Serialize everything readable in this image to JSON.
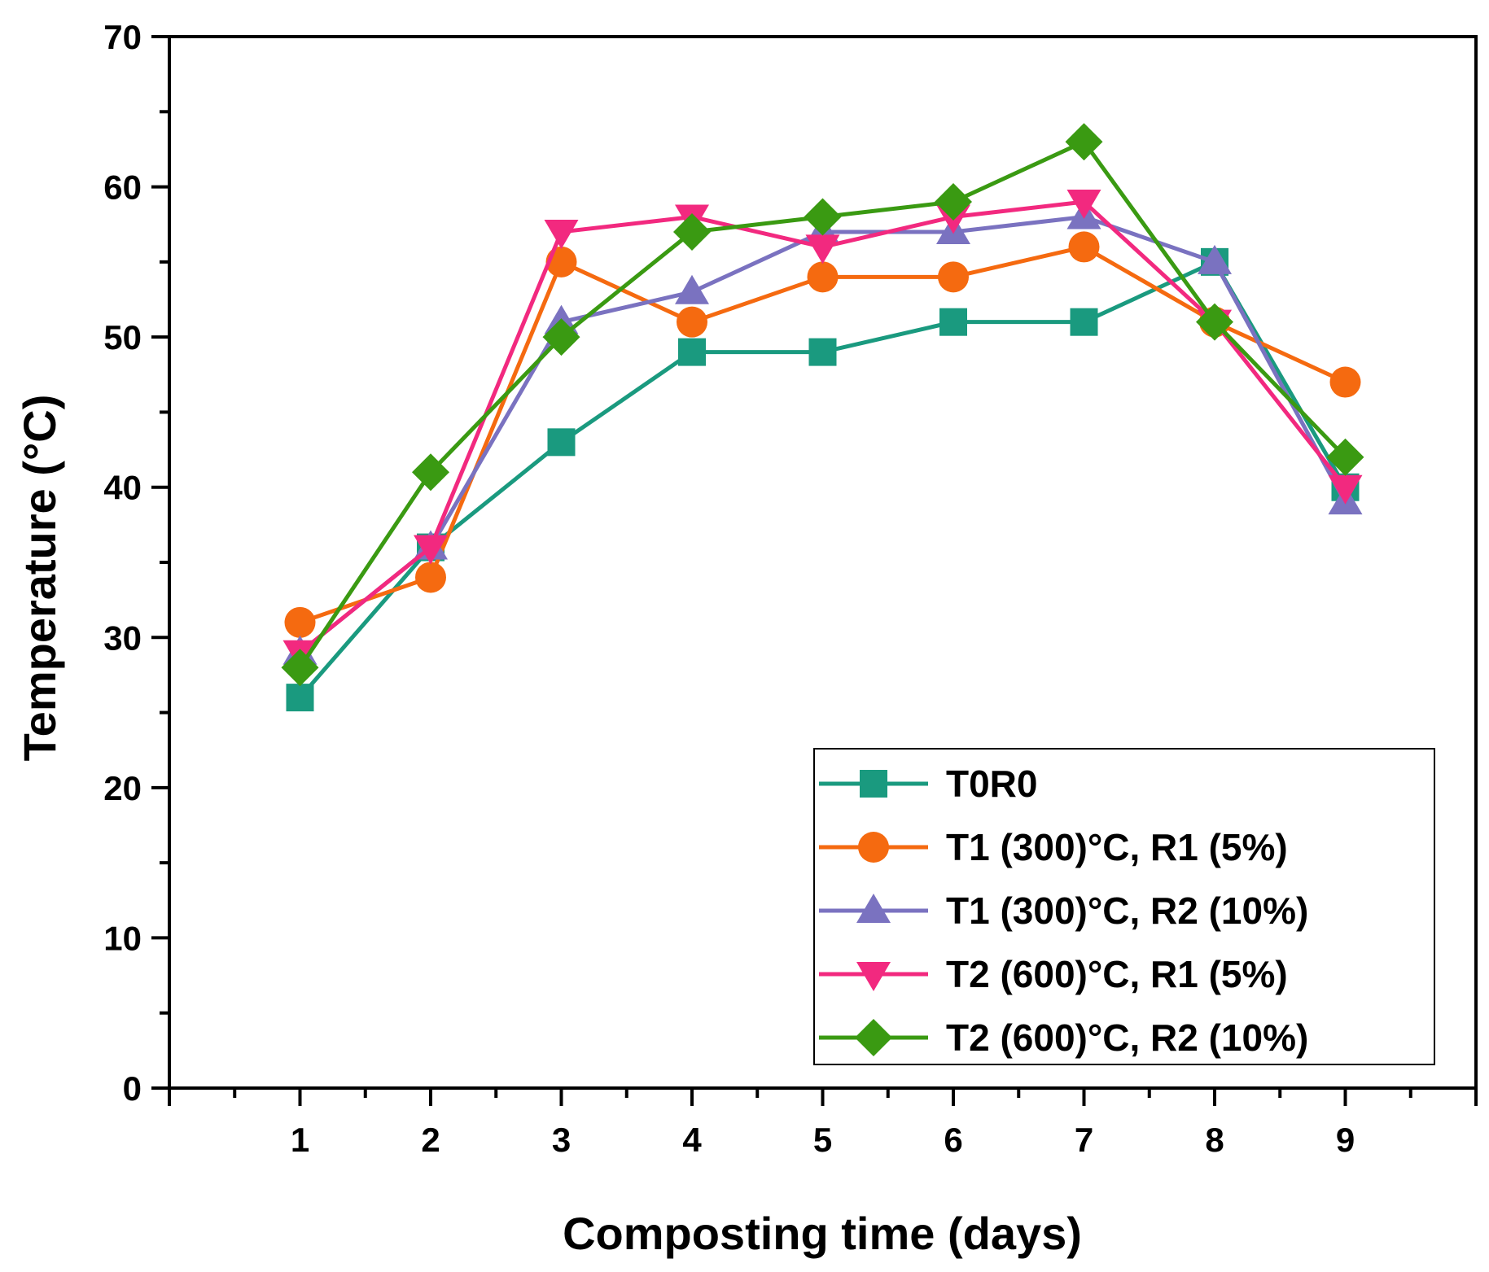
{
  "chart_data": {
    "type": "line",
    "title": "",
    "xlabel": "Composting time (days)",
    "ylabel": "Temperature (°C)",
    "xlim": [
      0,
      10
    ],
    "ylim": [
      0,
      70
    ],
    "x": [
      1,
      2,
      3,
      4,
      5,
      6,
      7,
      8,
      9
    ],
    "xticks": [
      "1",
      "2",
      "3",
      "4",
      "5",
      "6",
      "7",
      "8",
      "9"
    ],
    "yticks": [
      "0",
      "10",
      "20",
      "30",
      "40",
      "50",
      "60",
      "70"
    ],
    "legend_position": "bottom-right",
    "series": [
      {
        "name": "T0R0",
        "color": "#1a9a7f",
        "marker": "square",
        "values": [
          26,
          36,
          43,
          49,
          49,
          51,
          51,
          55,
          40
        ]
      },
      {
        "name": "T1 (300)°C, R1 (5%)",
        "color": "#f56a10",
        "marker": "circle",
        "values": [
          31,
          34,
          55,
          51,
          54,
          54,
          56,
          51,
          47
        ]
      },
      {
        "name": "T1 (300)°C, R2 (10%)",
        "color": "#7a72c0",
        "marker": "triangle-up",
        "values": [
          29,
          36,
          51,
          53,
          57,
          57,
          58,
          55,
          39
        ]
      },
      {
        "name": "T2 (600)°C, R1 (5%)",
        "color": "#f2297f",
        "marker": "triangle-down",
        "values": [
          29,
          36,
          57,
          58,
          56,
          58,
          59,
          51,
          40
        ]
      },
      {
        "name": "T2 (600)°C, R2 (10%)",
        "color": "#3a9a12",
        "marker": "diamond",
        "values": [
          28,
          41,
          50,
          57,
          58,
          59,
          63,
          51,
          42
        ]
      }
    ]
  }
}
